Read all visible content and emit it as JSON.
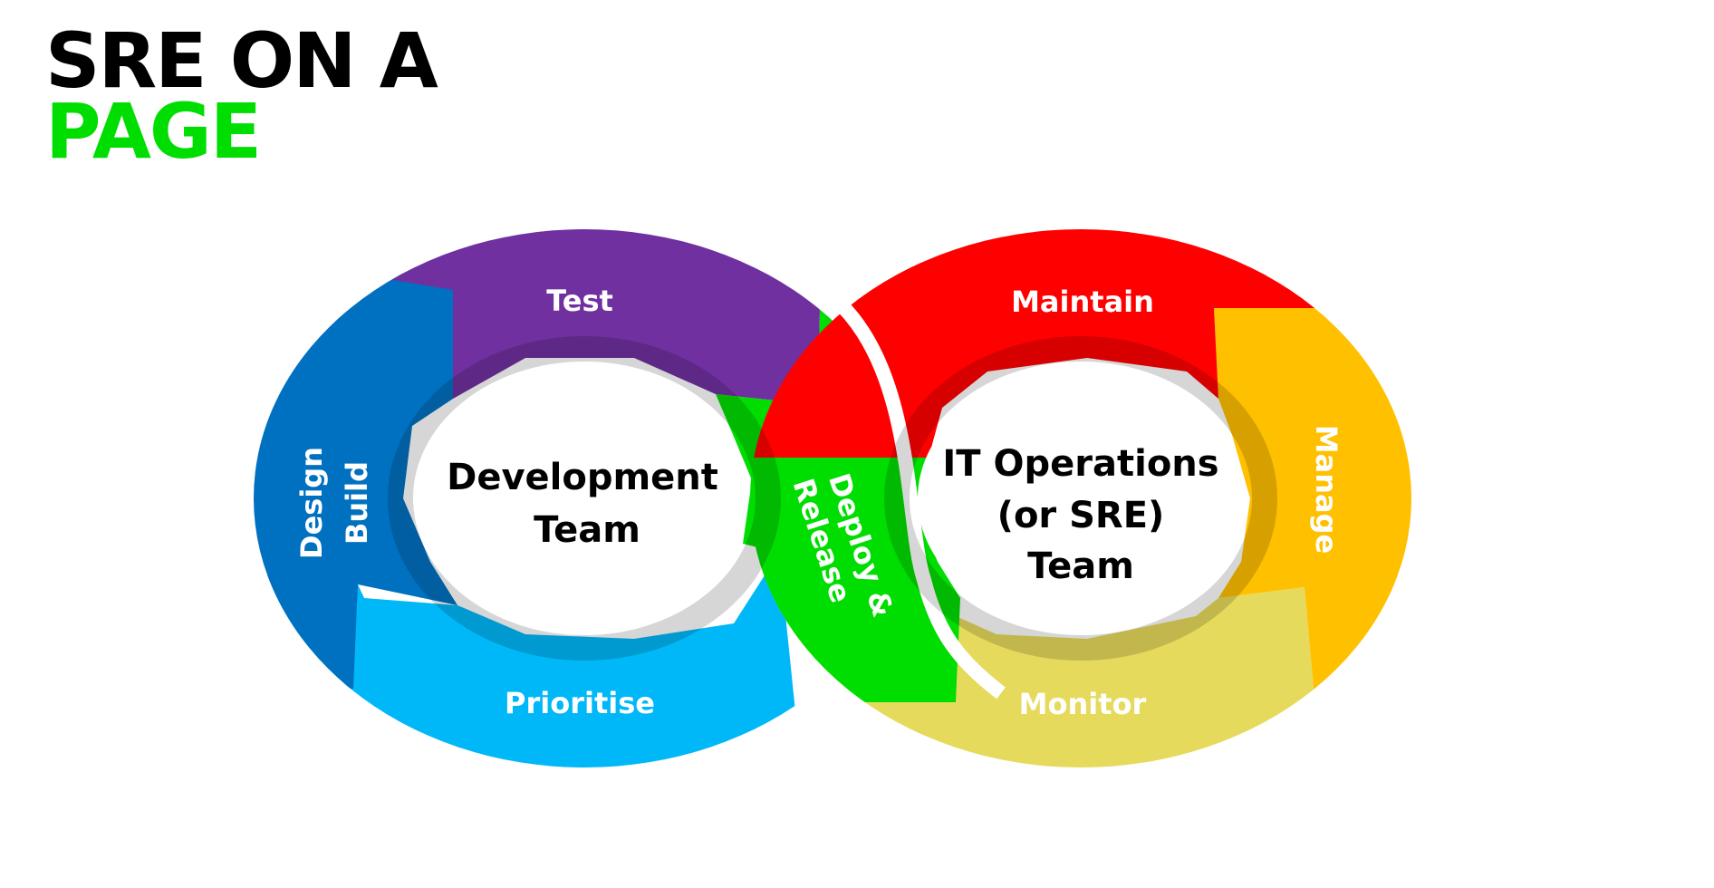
{
  "title": {
    "line1": "SRE ON A",
    "line2": "PAGE"
  },
  "colors": {
    "title_black": "#000000",
    "title_green": "#00dd00",
    "test": "#7030a0",
    "design_build": "#0070c0",
    "prioritise": "#00b8f8",
    "deploy_release": "#00dd00",
    "maintain": "#ff0000",
    "manage": "#ffc000",
    "monitor": "#e6da5c"
  },
  "development_cycle": {
    "team_line1": "Development",
    "team_line2": "Team",
    "test": "Test",
    "design": "Design",
    "build": "Build",
    "prioritise": "Prioritise"
  },
  "bridge": {
    "deploy": "Deploy &",
    "release": "Release"
  },
  "operations_cycle": {
    "team_line1": "IT Operations",
    "team_line2": "(or SRE)",
    "team_line3": "Team",
    "maintain": "Maintain",
    "manage": "Manage",
    "monitor": "Monitor"
  }
}
